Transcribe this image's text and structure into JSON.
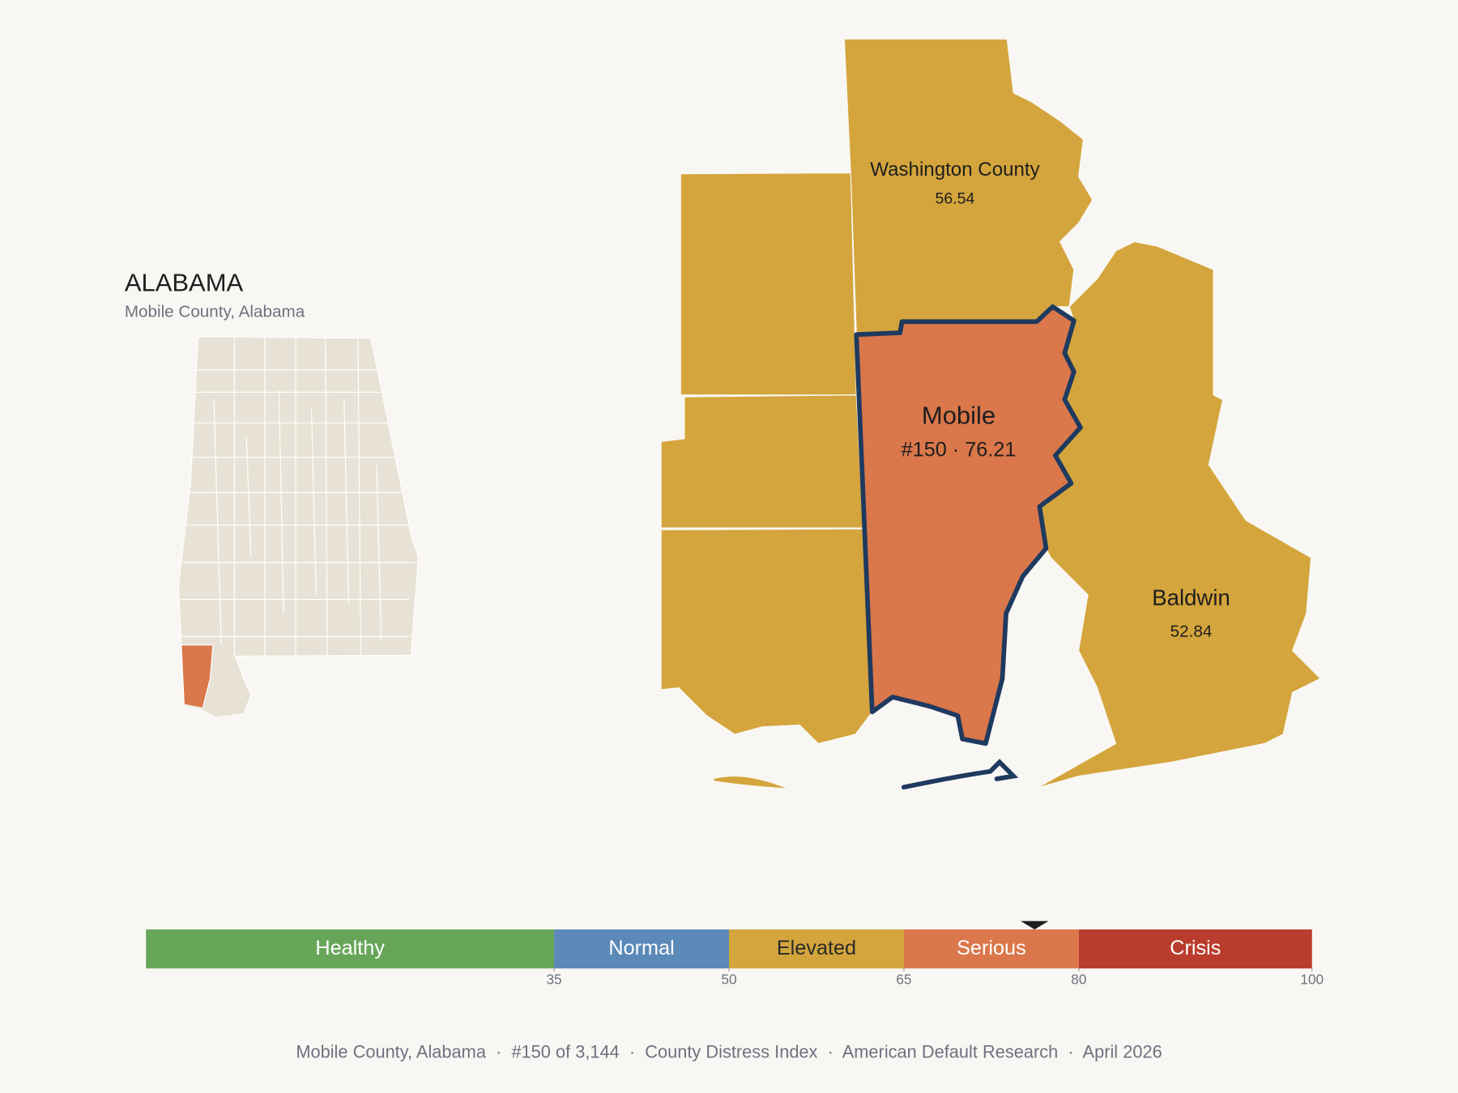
{
  "header": {
    "title": "ALABAMA",
    "subtitle": "Mobile County, Alabama"
  },
  "counties": [
    {
      "name": "Washington County",
      "score": 56.54
    },
    {
      "name": "Mobile",
      "label": "#150 · 76.21",
      "score": 76.21
    },
    {
      "name": "Baldwin",
      "score": 52.84
    }
  ],
  "scale": {
    "xlim": [
      0,
      100
    ],
    "xticks": [
      35,
      50,
      65,
      80,
      100
    ],
    "bands": [
      {
        "name": "Healthy",
        "color": "#67a659",
        "text_color": "#ffffff"
      },
      {
        "name": "Normal",
        "color": "#5b89b8",
        "text_color": "#ffffff"
      },
      {
        "name": "Elevated",
        "color": "#d4a53c",
        "text_color": "#2a2a2a"
      },
      {
        "name": "Serious",
        "color": "#da774b",
        "text_color": "#ffffff"
      },
      {
        "name": "Crisis",
        "color": "#b93c2c",
        "text_color": "#ffffff"
      }
    ]
  },
  "footer": "Mobile County, Alabama  ·  #150 of 3,144  ·  County Distress Index  ·  American Default Research  ·  April 2026"
}
